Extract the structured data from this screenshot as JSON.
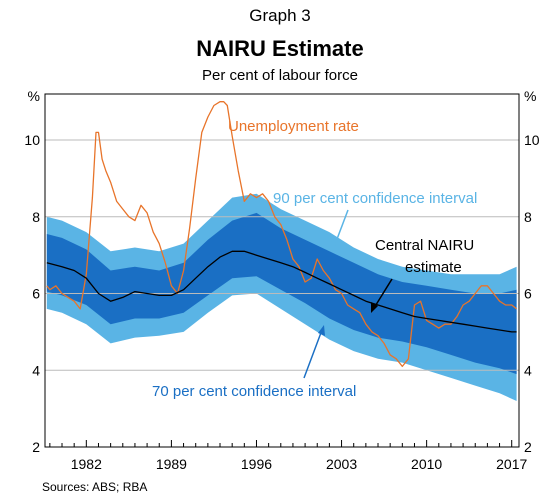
{
  "graph_label": "Graph 3",
  "title": "NAIRU Estimate",
  "subtitle": "Per cent of labour force",
  "sources": "Sources:   ABS; RBA",
  "colors": {
    "unemployment": "#e8742a",
    "band90": "#5ab4e5",
    "band70": "#1a6fc4",
    "central": "#000000",
    "annot70": "#1a6fc4",
    "annot90": "#5ab4e5",
    "grid": "#bbbbbb"
  },
  "chart_data": {
    "type": "line",
    "title": "NAIRU Estimate",
    "subtitle": "Per cent of labour force",
    "ylabel_left": "%",
    "ylabel_right": "%",
    "ylim": [
      2,
      11.2
    ],
    "yticks": [
      2,
      4,
      6,
      8,
      10
    ],
    "xlim": [
      1978.6,
      2017.6
    ],
    "xticks": [
      1982,
      1989,
      1996,
      2003,
      2010,
      2017
    ],
    "grid": true,
    "series": [
      {
        "name": "Unemployment rate",
        "x": [
          1978.75,
          1979.0,
          1979.5,
          1980.0,
          1980.5,
          1981.0,
          1981.5,
          1982.0,
          1982.5,
          1982.8,
          1983.0,
          1983.3,
          1983.6,
          1984.0,
          1984.5,
          1985.0,
          1985.5,
          1986.0,
          1986.5,
          1987.0,
          1987.5,
          1988.0,
          1988.5,
          1989.0,
          1989.5,
          1990.0,
          1990.5,
          1991.0,
          1991.5,
          1992.0,
          1992.5,
          1993.0,
          1993.3,
          1993.6,
          1994.0,
          1994.5,
          1995.0,
          1995.5,
          1996.0,
          1996.5,
          1997.0,
          1997.5,
          1998.0,
          1998.5,
          1999.0,
          1999.5,
          2000.0,
          2000.5,
          2001.0,
          2001.5,
          2002.0,
          2002.5,
          2003.0,
          2003.5,
          2004.0,
          2004.5,
          2005.0,
          2005.5,
          2006.0,
          2006.5,
          2007.0,
          2007.5,
          2008.0,
          2008.5,
          2009.0,
          2009.5,
          2010.0,
          2010.5,
          2011.0,
          2011.5,
          2012.0,
          2012.5,
          2013.0,
          2013.5,
          2014.0,
          2014.5,
          2015.0,
          2015.5,
          2016.0,
          2016.5,
          2017.0,
          2017.4
        ],
        "y": [
          6.2,
          6.1,
          6.2,
          6.0,
          5.9,
          5.8,
          5.6,
          6.5,
          8.5,
          10.2,
          10.2,
          9.5,
          9.2,
          8.9,
          8.4,
          8.2,
          8.0,
          7.9,
          8.3,
          8.1,
          7.6,
          7.3,
          6.8,
          6.2,
          6.0,
          6.6,
          7.7,
          9.0,
          10.2,
          10.6,
          10.9,
          11.0,
          11.0,
          10.9,
          10.1,
          9.2,
          8.4,
          8.6,
          8.5,
          8.6,
          8.4,
          8.0,
          7.8,
          7.4,
          6.9,
          6.7,
          6.3,
          6.4,
          6.9,
          6.6,
          6.4,
          6.1,
          6.0,
          5.7,
          5.6,
          5.5,
          5.2,
          5.0,
          4.9,
          4.7,
          4.4,
          4.3,
          4.1,
          4.3,
          5.7,
          5.8,
          5.3,
          5.2,
          5.1,
          5.2,
          5.2,
          5.4,
          5.7,
          5.8,
          6.0,
          6.2,
          6.2,
          6.0,
          5.8,
          5.7,
          5.7,
          5.6
        ]
      },
      {
        "name": "Central NAIRU estimate",
        "x": [
          1978.75,
          1980,
          1981,
          1982,
          1983,
          1984,
          1985,
          1986,
          1987,
          1988,
          1989,
          1990,
          1991,
          1992,
          1993,
          1994,
          1995,
          1996,
          1997,
          1998,
          1999,
          2000,
          2001,
          2002,
          2003,
          2004,
          2005,
          2006,
          2007,
          2008,
          2009,
          2010,
          2011,
          2012,
          2013,
          2014,
          2015,
          2016,
          2017,
          2017.4
        ],
        "y": [
          6.8,
          6.7,
          6.6,
          6.4,
          6.0,
          5.8,
          5.9,
          6.05,
          6.0,
          5.95,
          5.95,
          6.1,
          6.4,
          6.7,
          6.95,
          7.1,
          7.1,
          7.0,
          6.9,
          6.8,
          6.7,
          6.55,
          6.4,
          6.25,
          6.1,
          5.95,
          5.8,
          5.7,
          5.6,
          5.5,
          5.4,
          5.35,
          5.3,
          5.25,
          5.2,
          5.15,
          5.1,
          5.05,
          5.0,
          5.0
        ]
      }
    ],
    "bands": [
      {
        "name": "90 per cent confidence interval",
        "x": [
          1978.75,
          1980,
          1982,
          1984,
          1986,
          1988,
          1990,
          1992,
          1994,
          1996,
          1998,
          2000,
          2002,
          2004,
          2006,
          2008,
          2010,
          2012,
          2014,
          2016,
          2017.4
        ],
        "lower": [
          5.6,
          5.5,
          5.2,
          4.7,
          4.85,
          4.9,
          5.0,
          5.5,
          5.95,
          6.0,
          5.6,
          5.2,
          4.8,
          4.5,
          4.3,
          4.2,
          4.0,
          3.8,
          3.6,
          3.4,
          3.2
        ],
        "upper": [
          8.0,
          7.9,
          7.6,
          7.1,
          7.2,
          7.1,
          7.3,
          7.9,
          8.5,
          8.6,
          8.2,
          7.9,
          7.6,
          7.2,
          6.9,
          6.7,
          6.6,
          6.5,
          6.5,
          6.5,
          6.7
        ]
      },
      {
        "name": "70 per cent confidence interval",
        "x": [
          1978.75,
          1980,
          1982,
          1984,
          1986,
          1988,
          1990,
          1992,
          1994,
          1996,
          1998,
          2000,
          2002,
          2004,
          2006,
          2008,
          2010,
          2012,
          2014,
          2016,
          2017.4
        ],
        "lower": [
          6.05,
          5.95,
          5.7,
          5.2,
          5.35,
          5.35,
          5.5,
          5.95,
          6.4,
          6.45,
          6.1,
          5.75,
          5.35,
          5.05,
          4.85,
          4.75,
          4.6,
          4.4,
          4.2,
          4.05,
          3.9
        ],
        "upper": [
          7.55,
          7.45,
          7.15,
          6.6,
          6.7,
          6.6,
          6.8,
          7.4,
          7.9,
          8.1,
          7.7,
          7.4,
          7.1,
          6.8,
          6.5,
          6.3,
          6.2,
          6.1,
          6.0,
          6.0,
          6.1
        ]
      }
    ],
    "annotations": [
      {
        "text": "Unemployment rate",
        "color": "#e8742a"
      },
      {
        "text": "90 per cent confidence interval",
        "color": "#5ab4e5"
      },
      {
        "text": "Central NAIRU",
        "text2": "estimate",
        "color": "#000000"
      },
      {
        "text": "70 per cent confidence interval",
        "color": "#1a6fc4"
      }
    ]
  }
}
